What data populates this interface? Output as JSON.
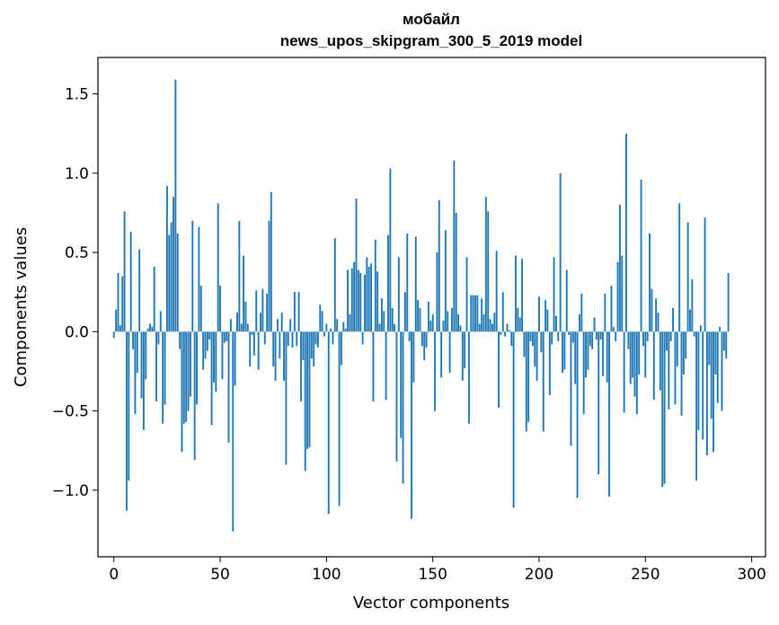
{
  "chart_data": {
    "type": "bar",
    "title_lines": [
      "мобайл",
      "news_upos_skipgram_300_5_2019 model"
    ],
    "xlabel": "Vector components",
    "ylabel": "Components values",
    "xlim": [
      -7.5,
      306.5
    ],
    "ylim": [
      -1.42,
      1.73
    ],
    "x_ticks": [
      0,
      50,
      100,
      150,
      200,
      250,
      300
    ],
    "y_ticks": [
      -1.0,
      -0.5,
      0.0,
      0.5,
      1.0,
      1.5
    ],
    "y_tick_labels": [
      "−1.0",
      "−0.5",
      "0.0",
      "0.5",
      "1.0",
      "1.5"
    ],
    "grid": false,
    "bar_color": "#1f77b4",
    "x": "indices 0..299",
    "values": [
      -0.04,
      0.14,
      0.37,
      0.04,
      0.35,
      0.76,
      -1.13,
      -0.94,
      0.63,
      -0.11,
      -0.52,
      -0.26,
      0.52,
      -0.42,
      -0.62,
      -0.3,
      0.02,
      0.05,
      0.03,
      0.41,
      -0.44,
      -0.08,
      0.13,
      -0.58,
      -0.46,
      0.92,
      0.61,
      0.69,
      0.85,
      1.59,
      0.62,
      -0.11,
      -0.76,
      -0.58,
      -0.57,
      -0.5,
      -0.41,
      0.7,
      -0.81,
      -0.46,
      0.66,
      0.29,
      -0.24,
      -0.17,
      -0.12,
      -0.05,
      -0.59,
      -0.32,
      -0.38,
      0.81,
      0.29,
      -0.3,
      -0.07,
      -0.06,
      -0.7,
      0.08,
      -1.26,
      -0.34,
      0.12,
      0.7,
      0.05,
      0.48,
      0.19,
      0.05,
      -0.22,
      -0.02,
      -0.15,
      0.26,
      -0.24,
      0.12,
      0.27,
      -0.08,
      0.24,
      0.7,
      0.88,
      -0.22,
      -0.31,
      0.08,
      -0.17,
      0.12,
      -0.31,
      -0.84,
      -0.09,
      0.08,
      -0.1,
      0.25,
      -0.09,
      0.25,
      -0.44,
      -0.18,
      -0.88,
      -0.74,
      -0.73,
      -0.17,
      -0.22,
      -0.08,
      -0.1,
      0.17,
      0.13,
      -0.03,
      0.05,
      -1.15,
      0.02,
      -0.08,
      0.59,
      0.08,
      -1.1,
      -0.21,
      0.06,
      0.02,
      0.39,
      0.11,
      0.4,
      0.44,
      0.84,
      0.39,
      0.37,
      -0.08,
      0.36,
      0.47,
      0.41,
      0.43,
      -0.44,
      0.58,
      0.38,
      0.05,
      0.21,
      0.13,
      -0.43,
      0.61,
      1.03,
      0.15,
      0.05,
      -0.82,
      0.47,
      -0.67,
      -0.96,
      0.25,
      0.62,
      -0.06,
      -1.18,
      -0.32,
      0.6,
      0.2,
      0.15,
      -0.09,
      -0.18,
      -0.1,
      0.19,
      0.07,
      0.11,
      -0.5,
      0.5,
      0.83,
      -0.29,
      0.07,
      0.64,
      0.13,
      -0.26,
      0.15,
      1.08,
      0.75,
      0.11,
      0.04,
      -0.31,
      -0.23,
      0.47,
      -0.58,
      0.23,
      0.23,
      0.23,
      0.23,
      0.05,
      0.21,
      0.11,
      0.85,
      0.76,
      0.08,
      0.05,
      0.12,
      0.51,
      -0.48,
      -0.02,
      0.25,
      -0.03,
      0.05,
      0.01,
      -0.09,
      -1.11,
      0.48,
      0.15,
      0.09,
      0.46,
      -0.16,
      -0.63,
      -0.57,
      -0.06,
      -0.09,
      -0.22,
      -0.31,
      0.22,
      -0.13,
      -0.63,
      0.2,
      0.14,
      -0.4,
      -0.08,
      0.47,
      0.1,
      -0.06,
      1.0,
      -0.26,
      -0.24,
      0.39,
      -0.02,
      -0.72,
      -0.07,
      -0.33,
      -1.05,
      0.11,
      0.24,
      -0.52,
      -0.29,
      -0.24,
      -0.09,
      -0.11,
      0.09,
      -0.05,
      -0.9,
      -0.05,
      -0.28,
      0.24,
      -0.32,
      -1.04,
      0.29,
      0.03,
      -0.06,
      0.44,
      0.8,
      0.48,
      -0.51,
      1.25,
      -0.11,
      -0.33,
      -0.29,
      -0.41,
      -0.52,
      -0.27,
      0.96,
      -0.09,
      -0.29,
      -0.06,
      0.62,
      0.27,
      -0.43,
      0.21,
      0.12,
      -0.37,
      -0.98,
      -0.96,
      -0.12,
      -0.49,
      -0.06,
      0.15,
      -0.46,
      -0.22,
      0.81,
      -0.53,
      -0.27,
      -0.17,
      0.69,
      0.14,
      0.33,
      -0.03,
      -0.94,
      -0.62,
      0.04,
      -0.68,
      0.72,
      -0.78,
      -0.21,
      -0.55,
      -0.76,
      -0.27,
      -0.45,
      0.03,
      -0.5,
      -0.12,
      -0.17,
      0.37
    ]
  }
}
